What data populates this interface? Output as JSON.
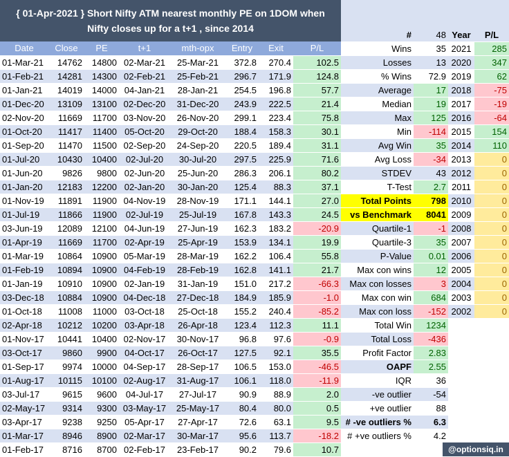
{
  "title_line1": "{ 01-Apr-2021 } Short Nifty ATM nearest monthly PE on 1DOM when",
  "title_line2": "Nifty closes up for a t+1 , since 2014",
  "columns": [
    "Date",
    "Close",
    "PE",
    "t+1",
    "mth-opx",
    "Entry",
    "Exit",
    "P/L"
  ],
  "trades": [
    [
      "01-Mar-21",
      "14762",
      "14800",
      "02-Mar-21",
      "25-Mar-21",
      "372.8",
      "270.4",
      "102.5"
    ],
    [
      "01-Feb-21",
      "14281",
      "14300",
      "02-Feb-21",
      "25-Feb-21",
      "296.7",
      "171.9",
      "124.8"
    ],
    [
      "01-Jan-21",
      "14019",
      "14000",
      "04-Jan-21",
      "28-Jan-21",
      "254.5",
      "196.8",
      "57.7"
    ],
    [
      "01-Dec-20",
      "13109",
      "13100",
      "02-Dec-20",
      "31-Dec-20",
      "243.9",
      "222.5",
      "21.4"
    ],
    [
      "02-Nov-20",
      "11669",
      "11700",
      "03-Nov-20",
      "26-Nov-20",
      "299.1",
      "223.4",
      "75.8"
    ],
    [
      "01-Oct-20",
      "11417",
      "11400",
      "05-Oct-20",
      "29-Oct-20",
      "188.4",
      "158.3",
      "30.1"
    ],
    [
      "01-Sep-20",
      "11470",
      "11500",
      "02-Sep-20",
      "24-Sep-20",
      "220.5",
      "189.4",
      "31.1"
    ],
    [
      "01-Jul-20",
      "10430",
      "10400",
      "02-Jul-20",
      "30-Jul-20",
      "297.5",
      "225.9",
      "71.6"
    ],
    [
      "01-Jun-20",
      "9826",
      "9800",
      "02-Jun-20",
      "25-Jun-20",
      "286.3",
      "206.1",
      "80.2"
    ],
    [
      "01-Jan-20",
      "12183",
      "12200",
      "02-Jan-20",
      "30-Jan-20",
      "125.4",
      "88.3",
      "37.1"
    ],
    [
      "01-Nov-19",
      "11891",
      "11900",
      "04-Nov-19",
      "28-Nov-19",
      "171.1",
      "144.1",
      "27.0"
    ],
    [
      "01-Jul-19",
      "11866",
      "11900",
      "02-Jul-19",
      "25-Jul-19",
      "167.8",
      "143.3",
      "24.5"
    ],
    [
      "03-Jun-19",
      "12089",
      "12100",
      "04-Jun-19",
      "27-Jun-19",
      "162.3",
      "183.2",
      "-20.9"
    ],
    [
      "01-Apr-19",
      "11669",
      "11700",
      "02-Apr-19",
      "25-Apr-19",
      "153.9",
      "134.1",
      "19.9"
    ],
    [
      "01-Mar-19",
      "10864",
      "10900",
      "05-Mar-19",
      "28-Mar-19",
      "162.2",
      "106.4",
      "55.8"
    ],
    [
      "01-Feb-19",
      "10894",
      "10900",
      "04-Feb-19",
      "28-Feb-19",
      "162.8",
      "141.1",
      "21.7"
    ],
    [
      "01-Jan-19",
      "10910",
      "10900",
      "02-Jan-19",
      "31-Jan-19",
      "151.0",
      "217.2",
      "-66.3"
    ],
    [
      "03-Dec-18",
      "10884",
      "10900",
      "04-Dec-18",
      "27-Dec-18",
      "184.9",
      "185.9",
      "-1.0"
    ],
    [
      "01-Oct-18",
      "11008",
      "11000",
      "03-Oct-18",
      "25-Oct-18",
      "155.2",
      "240.4",
      "-85.2"
    ],
    [
      "02-Apr-18",
      "10212",
      "10200",
      "03-Apr-18",
      "26-Apr-18",
      "123.4",
      "112.3",
      "11.1"
    ],
    [
      "01-Nov-17",
      "10441",
      "10400",
      "02-Nov-17",
      "30-Nov-17",
      "96.8",
      "97.6",
      "-0.9"
    ],
    [
      "03-Oct-17",
      "9860",
      "9900",
      "04-Oct-17",
      "26-Oct-17",
      "127.5",
      "92.1",
      "35.5"
    ],
    [
      "01-Sep-17",
      "9974",
      "10000",
      "04-Sep-17",
      "28-Sep-17",
      "106.5",
      "153.0",
      "-46.5"
    ],
    [
      "01-Aug-17",
      "10115",
      "10100",
      "02-Aug-17",
      "31-Aug-17",
      "106.1",
      "118.0",
      "-11.9"
    ],
    [
      "03-Jul-17",
      "9615",
      "9600",
      "04-Jul-17",
      "27-Jul-17",
      "90.9",
      "88.9",
      "2.0"
    ],
    [
      "02-May-17",
      "9314",
      "9300",
      "03-May-17",
      "25-May-17",
      "80.4",
      "80.0",
      "0.5"
    ],
    [
      "03-Apr-17",
      "9238",
      "9250",
      "05-Apr-17",
      "27-Apr-17",
      "72.6",
      "63.1",
      "9.5"
    ],
    [
      "01-Mar-17",
      "8946",
      "8900",
      "02-Mar-17",
      "30-Mar-17",
      "95.6",
      "113.7",
      "-18.2"
    ],
    [
      "01-Feb-17",
      "8716",
      "8700",
      "02-Feb-17",
      "23-Feb-17",
      "90.2",
      "79.6",
      "10.7"
    ]
  ],
  "stats_header": {
    "label": "#",
    "value": "48",
    "year": "Year",
    "pl": "P/L"
  },
  "stats": [
    {
      "label": "Wins",
      "value": "35",
      "year": "2021",
      "pl": "285",
      "vs": "",
      "ys": "g"
    },
    {
      "label": "Losses",
      "value": "13",
      "year": "2020",
      "pl": "347",
      "vs": "",
      "ys": "g"
    },
    {
      "label": "% Wins",
      "value": "72.9",
      "year": "2019",
      "pl": "62",
      "vs": "",
      "ys": "g"
    },
    {
      "label": "Average",
      "value": "17",
      "year": "2018",
      "pl": "-75",
      "vs": "g",
      "ys": "r"
    },
    {
      "label": "Median",
      "value": "19",
      "year": "2017",
      "pl": "-19",
      "vs": "g",
      "ys": "r"
    },
    {
      "label": "Max",
      "value": "125",
      "year": "2016",
      "pl": "-64",
      "vs": "g",
      "ys": "r"
    },
    {
      "label": "Min",
      "value": "-114",
      "year": "2015",
      "pl": "154",
      "vs": "r",
      "ys": "g"
    },
    {
      "label": "Avg Win",
      "value": "35",
      "year": "2014",
      "pl": "110",
      "vs": "g",
      "ys": "g"
    },
    {
      "label": "Avg Loss",
      "value": "-34",
      "year": "2013",
      "pl": "0",
      "vs": "r",
      "ys": "y"
    },
    {
      "label": "STDEV",
      "value": "43",
      "year": "2012",
      "pl": "0",
      "vs": "",
      "ys": "y"
    },
    {
      "label": "T-Test",
      "value": "2.7",
      "year": "2011",
      "pl": "0",
      "vs": "g",
      "ys": "y"
    },
    {
      "label": "Total  Points",
      "value": "798",
      "year": "2010",
      "pl": "0",
      "vs": "yy",
      "ys": "y",
      "ls": "yy"
    },
    {
      "label": "vs  Benchmark",
      "value": "8041",
      "year": "2009",
      "pl": "0",
      "vs": "yy",
      "ys": "y",
      "ls": "yy"
    },
    {
      "label": "Quartile-1",
      "value": "-1",
      "year": "2008",
      "pl": "0",
      "vs": "r",
      "ys": "y"
    },
    {
      "label": "Quartile-3",
      "value": "35",
      "year": "2007",
      "pl": "0",
      "vs": "g",
      "ys": "y"
    },
    {
      "label": "P-Value",
      "value": "0.01",
      "year": "2006",
      "pl": "0",
      "vs": "g",
      "ys": "y"
    },
    {
      "label": "Max con wins",
      "value": "12",
      "year": "2005",
      "pl": "0",
      "vs": "g",
      "ys": "y"
    },
    {
      "label": "Max con losses",
      "value": "3",
      "year": "2004",
      "pl": "0",
      "vs": "r",
      "ys": "y"
    },
    {
      "label": "Max con win",
      "value": "684",
      "year": "2003",
      "pl": "0",
      "vs": "g",
      "ys": "y"
    },
    {
      "label": "Max con loss",
      "value": "-152",
      "year": "2002",
      "pl": "0",
      "vs": "r",
      "ys": "y"
    },
    {
      "label": "Total Win",
      "value": "1234",
      "year": "",
      "pl": "",
      "vs": "g",
      "ys": ""
    },
    {
      "label": "Total Loss",
      "value": "-436",
      "year": "",
      "pl": "",
      "vs": "r",
      "ys": ""
    },
    {
      "label": "Profit Factor",
      "value": "2.83",
      "year": "",
      "pl": "",
      "vs": "g",
      "ys": ""
    },
    {
      "label": "OAPF",
      "value": "2.55",
      "year": "",
      "pl": "",
      "vs": "g",
      "ys": "",
      "lb": true
    },
    {
      "label": "IQR",
      "value": "36",
      "year": "",
      "pl": "",
      "vs": "",
      "ys": ""
    },
    {
      "label": "-ve outlier",
      "value": "-54",
      "year": "",
      "pl": "",
      "vs": "",
      "ys": ""
    },
    {
      "label": "+ve outlier",
      "value": "88",
      "year": "",
      "pl": "",
      "vs": "",
      "ys": ""
    },
    {
      "label": "# -ve outliers %",
      "value": "6.3",
      "year": "",
      "pl": "",
      "vs": "",
      "ys": "",
      "lb": true,
      "vb": true
    },
    {
      "label": "# +ve outliers %",
      "value": "4.2",
      "year": "",
      "pl": "",
      "vs": "",
      "ys": ""
    }
  ],
  "footer": "@optionsiq.in",
  "colors": {
    "header_bg": "#44546a",
    "col_header": "#8ea9db",
    "band": "#d9e1f2",
    "pos": "#c6efce",
    "neg": "#ffc7ce",
    "neutral": "#ffeb9c",
    "highlight": "#ffff00"
  }
}
